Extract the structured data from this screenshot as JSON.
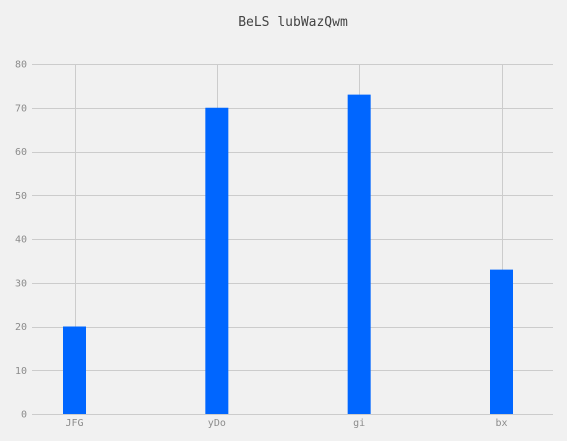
{
  "chart_data": {
    "type": "bar",
    "title": "BeLS lubWazQwm",
    "xlabel": "",
    "ylabel": "",
    "categories": [
      "JFG",
      "yDo",
      "gi",
      "bx"
    ],
    "values": [
      20,
      70,
      73,
      33
    ],
    "ylim": [
      0,
      80
    ],
    "yticks": [
      0,
      10,
      20,
      30,
      40,
      50,
      60,
      70,
      80
    ],
    "grid": true,
    "bar_color": "#0066ff",
    "grid_color": "#cccccc",
    "background_color": "#f1f1f1"
  }
}
